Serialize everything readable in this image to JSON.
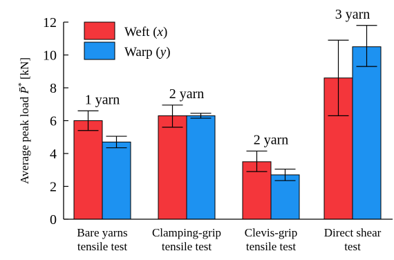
{
  "chart_data": {
    "type": "bar",
    "title": "",
    "xlabel": "",
    "ylabel": "Average peak load P̄* [kN]",
    "ylabel_parts": {
      "prefix": "Average peak load ",
      "symbol": "P̄",
      "superscript": "*",
      "unit": " [kN]"
    },
    "ylim": [
      0,
      12
    ],
    "yticks": [
      0,
      2,
      4,
      6,
      8,
      10,
      12
    ],
    "grid": false,
    "legend_placement": "top-left",
    "categories": [
      [
        "Bare yarns",
        "tensile test"
      ],
      [
        "Clamping-grip",
        "tensile test"
      ],
      [
        "Clevis-grip",
        "tensile test"
      ],
      [
        "Direct shear",
        "test"
      ]
    ],
    "annotations": [
      "1 yarn",
      "2 yarn",
      "2 yarn",
      "3 yarn"
    ],
    "series": [
      {
        "name": "Weft (x)",
        "legend_text": "Weft (",
        "legend_var": "x",
        "legend_close": ")",
        "color": "#f4363b",
        "values": [
          6.0,
          6.3,
          3.5,
          8.6
        ],
        "error_low": [
          5.4,
          5.6,
          2.9,
          6.3
        ],
        "error_high": [
          6.6,
          6.95,
          4.15,
          10.9
        ]
      },
      {
        "name": "Warp (y)",
        "legend_text": "Warp (",
        "legend_var": "y",
        "legend_close": ")",
        "color": "#1d92f1",
        "values": [
          4.7,
          6.3,
          2.7,
          10.5
        ],
        "error_low": [
          4.35,
          6.15,
          2.35,
          9.3
        ],
        "error_high": [
          5.05,
          6.45,
          3.05,
          11.8
        ]
      }
    ],
    "colors": {
      "weft": "#f4363b",
      "warp": "#1d92f1",
      "axis": "#000000"
    }
  }
}
